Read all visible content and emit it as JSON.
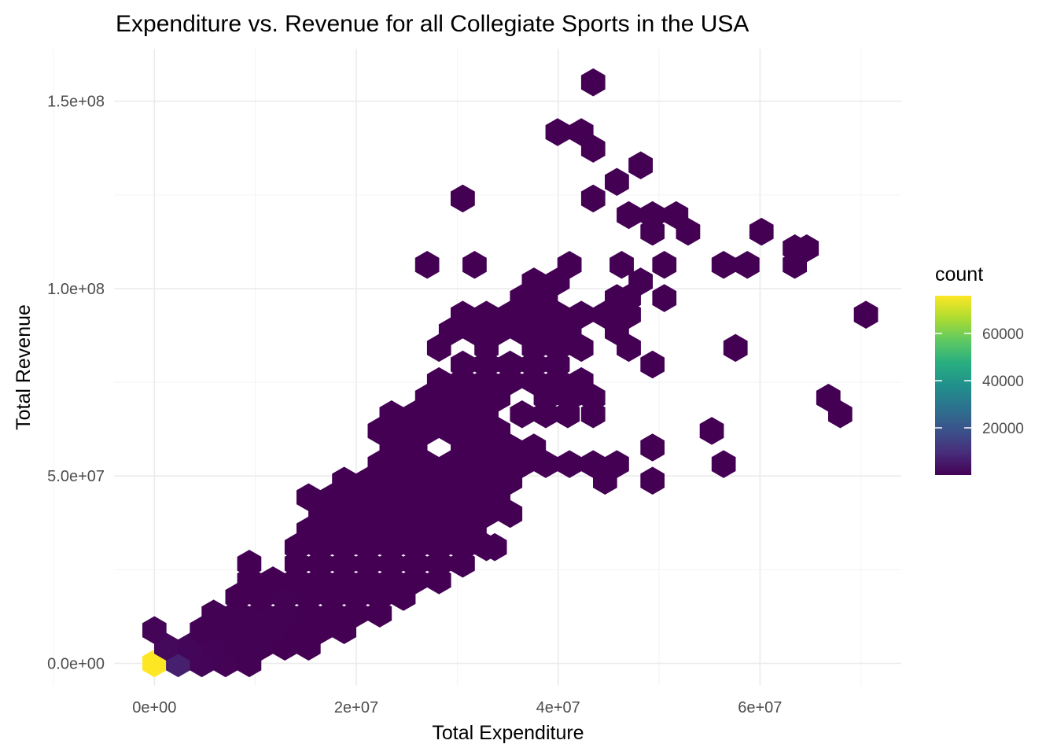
{
  "chart_data": {
    "type": "hexbin",
    "title": "Expenditure vs. Revenue for all Collegiate Sports in the USA",
    "xlabel": "Total Expenditure",
    "ylabel": "Total Revenue",
    "xlim": [
      -4000000,
      74000000
    ],
    "ylim": [
      -6000000,
      164000000
    ],
    "x_ticks": [
      0,
      20000000,
      40000000,
      60000000
    ],
    "x_tick_labels": [
      "0e+00",
      "2e+07",
      "4e+07",
      "6e+07"
    ],
    "y_ticks": [
      0,
      50000000,
      100000000,
      150000000
    ],
    "y_tick_labels": [
      "0.0e+00",
      "5.0e+07",
      "1.0e+08",
      "1.5e+08"
    ],
    "grid": true,
    "legend": {
      "title": "count",
      "position": "right",
      "colormap": "viridis",
      "range": [
        1,
        76000
      ],
      "ticks": [
        20000,
        40000,
        60000
      ],
      "tick_labels": [
        "20000",
        "40000",
        "60000"
      ]
    },
    "hex_width": 2350000,
    "hex_row_height": 4430000,
    "bins": {
      "note_format": "Each row: [y_center, x_start, x_step, count] — hexes at x_start + i*x_step for i < count; counts below",
      "rows": [
        {
          "y": 0,
          "x": [
            0,
            2350000,
            4700000,
            7050000,
            9400000
          ],
          "count": [
            76000,
            6500,
            900,
            350,
            150
          ]
        },
        {
          "y": 4430000,
          "x": [
            1175000,
            3525000,
            5875000,
            8225000,
            10575000,
            12925000,
            15275000
          ],
          "count": [
            1800,
            1100,
            450,
            250,
            120,
            60,
            30
          ]
        },
        {
          "y": 8860000,
          "x": [
            0,
            4700000,
            7050000,
            9400000,
            11750000,
            14100000,
            16450000,
            18800000
          ],
          "count": [
            700,
            300,
            260,
            200,
            140,
            90,
            50,
            25
          ]
        },
        {
          "y": 13290000,
          "x": [
            5875000,
            8225000,
            10575000,
            12925000,
            15275000,
            17625000,
            19975000,
            22325000
          ],
          "count": [
            120,
            150,
            140,
            120,
            90,
            70,
            40,
            15
          ]
        },
        {
          "y": 17720000,
          "x": [
            8225000,
            10575000,
            12925000,
            15275000,
            17625000,
            19975000,
            22325000,
            24675000
          ],
          "count": [
            60,
            90,
            110,
            100,
            80,
            60,
            35,
            10
          ]
        },
        {
          "y": 22150000,
          "x": [
            9400000,
            11750000,
            14100000,
            16450000,
            18800000,
            21150000,
            23500000,
            25850000,
            28200000
          ],
          "count": [
            20,
            50,
            80,
            90,
            80,
            70,
            50,
            30,
            8
          ]
        },
        {
          "y": 26580000,
          "x": [
            9400000,
            14100000,
            16450000,
            18800000,
            21150000,
            23500000,
            25850000,
            28200000,
            30550000
          ],
          "count": [
            5,
            40,
            60,
            80,
            70,
            60,
            40,
            20,
            6
          ]
        },
        {
          "y": 31010000,
          "x": [
            14100000,
            16450000,
            18800000,
            21150000,
            23500000,
            25850000,
            28200000,
            30550000,
            32900000,
            33725000
          ],
          "count": [
            20,
            40,
            50,
            60,
            55,
            45,
            30,
            12,
            4,
            3
          ]
        },
        {
          "y": 35440000,
          "x": [
            15275000,
            17625000,
            19975000,
            22325000,
            24675000,
            27025000,
            29375000,
            31725000
          ],
          "count": [
            25,
            40,
            50,
            50,
            40,
            30,
            15,
            5
          ]
        },
        {
          "y": 39870000,
          "x": [
            16450000,
            18800000,
            21150000,
            23500000,
            25850000,
            28200000,
            30550000,
            32900000,
            35250000
          ],
          "count": [
            15,
            30,
            40,
            40,
            35,
            25,
            12,
            6,
            3
          ]
        },
        {
          "y": 44300000,
          "x": [
            15275000,
            17625000,
            19975000,
            22325000,
            24675000,
            27025000,
            29375000,
            31725000,
            34075000
          ],
          "count": [
            3,
            20,
            30,
            35,
            30,
            25,
            12,
            6,
            3
          ]
        },
        {
          "y": 48730000,
          "x": [
            18800000,
            21150000,
            23500000,
            25850000,
            28200000,
            30550000,
            32900000,
            35250000,
            44650000,
            49350000
          ],
          "count": [
            10,
            20,
            25,
            25,
            20,
            12,
            8,
            4,
            2,
            2
          ]
        },
        {
          "y": 53160000,
          "x": [
            22325000,
            24675000,
            27025000,
            29375000,
            31725000,
            34075000,
            36425000,
            38775000,
            41125000,
            43475000,
            45825000,
            56400000
          ],
          "count": [
            12,
            18,
            20,
            16,
            10,
            8,
            6,
            5,
            4,
            3,
            2,
            2
          ]
        },
        {
          "y": 57590000,
          "x": [
            23500000,
            25850000,
            30550000,
            32900000,
            35250000,
            37600000,
            49350000
          ],
          "count": [
            10,
            14,
            10,
            8,
            6,
            3,
            2
          ]
        },
        {
          "y": 62020000,
          "x": [
            22325000,
            24675000,
            27025000,
            29375000,
            31725000,
            34075000,
            55225000
          ],
          "count": [
            6,
            10,
            12,
            8,
            6,
            3,
            2
          ]
        },
        {
          "y": 66450000,
          "x": [
            23500000,
            25850000,
            28200000,
            30550000,
            32900000,
            36425000,
            38775000,
            40950000,
            43475000,
            67950000
          ],
          "count": [
            3,
            6,
            8,
            6,
            4,
            3,
            3,
            3,
            2,
            2
          ]
        },
        {
          "y": 70880000,
          "x": [
            27025000,
            29375000,
            31725000,
            34075000,
            38775000,
            41125000,
            43475000,
            66775000
          ],
          "count": [
            3,
            5,
            4,
            3,
            3,
            3,
            2,
            2
          ]
        },
        {
          "y": 75310000,
          "x": [
            28200000,
            30550000,
            32900000,
            35250000,
            37600000,
            39950000,
            42300000
          ],
          "count": [
            3,
            3,
            3,
            3,
            3,
            3,
            2
          ]
        },
        {
          "y": 79740000,
          "x": [
            30550000,
            32900000,
            35250000,
            37600000,
            39950000,
            49350000
          ],
          "count": [
            2,
            3,
            3,
            3,
            3,
            2
          ]
        },
        {
          "y": 84170000,
          "x": [
            28200000,
            32900000,
            37600000,
            39950000,
            42300000,
            47000000,
            57575000
          ],
          "count": [
            2,
            3,
            4,
            3,
            2,
            2,
            2
          ]
        },
        {
          "y": 88600000,
          "x": [
            29375000,
            31725000,
            34075000,
            36425000,
            38775000,
            41125000,
            45825000
          ],
          "count": [
            2,
            3,
            3,
            3,
            3,
            2,
            2
          ]
        },
        {
          "y": 93030000,
          "x": [
            30550000,
            32900000,
            35250000,
            37600000,
            39950000,
            42300000,
            44650000,
            47000000,
            70500000
          ],
          "count": [
            2,
            2,
            3,
            4,
            3,
            2,
            2,
            2,
            2
          ]
        },
        {
          "y": 97460000,
          "x": [
            36425000,
            38775000,
            45825000,
            47000000,
            50525000
          ],
          "count": [
            3,
            3,
            2,
            2,
            2
          ]
        },
        {
          "y": 101890000,
          "x": [
            37600000,
            39950000,
            48175000
          ],
          "count": [
            2,
            2,
            2
          ]
        },
        {
          "y": 106320000,
          "x": [
            27025000,
            31725000,
            41125000,
            46300000,
            50525000,
            56400000,
            58750000,
            63450000
          ],
          "count": [
            2,
            2,
            2,
            2,
            2,
            2,
            2,
            2
          ]
        },
        {
          "y": 110750000,
          "x": [
            63450000,
            64625000
          ],
          "count": [
            2,
            2
          ]
        },
        {
          "y": 115180000,
          "x": [
            49350000,
            52875000,
            60150000
          ],
          "count": [
            2,
            2,
            2
          ]
        },
        {
          "y": 119610000,
          "x": [
            47000000,
            49350000,
            51700000
          ],
          "count": [
            2,
            2,
            2
          ]
        },
        {
          "y": 124040000,
          "x": [
            30550000,
            43475000
          ],
          "count": [
            2,
            2
          ]
        },
        {
          "y": 128470000,
          "x": [
            45825000
          ],
          "count": [
            2
          ]
        },
        {
          "y": 132900000,
          "x": [
            48175000
          ],
          "count": [
            2
          ]
        },
        {
          "y": 137330000,
          "x": [
            43475000
          ],
          "count": [
            2
          ]
        },
        {
          "y": 141760000,
          "x": [
            39950000,
            42300000
          ],
          "count": [
            2,
            2
          ]
        },
        {
          "y": 155050000,
          "x": [
            43475000
          ],
          "count": [
            2
          ]
        }
      ]
    }
  }
}
